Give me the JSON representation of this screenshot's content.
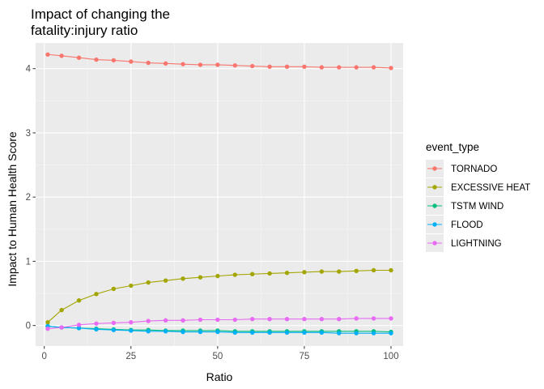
{
  "chart_data": {
    "type": "line",
    "title_line1": "Impact of changing the",
    "title_line2": "fatality:injury ratio",
    "xlabel": "Ratio",
    "ylabel": "Impact to Human Health Score",
    "xlim": [
      -2.5,
      103.5
    ],
    "ylim": [
      -0.32,
      4.4
    ],
    "x_ticks": [
      0,
      25,
      50,
      75,
      100
    ],
    "x_tick_labels": [
      "0",
      "25",
      "50",
      "75",
      "100"
    ],
    "y_ticks": [
      0,
      1,
      2,
      3,
      4
    ],
    "y_tick_labels": [
      "0",
      "1",
      "2",
      "3",
      "4"
    ],
    "grid": true,
    "legend_title": "event_type",
    "legend_position": "right",
    "x": [
      1,
      5,
      10,
      15,
      20,
      25,
      30,
      35,
      40,
      45,
      50,
      55,
      60,
      65,
      70,
      75,
      80,
      85,
      90,
      95,
      100
    ],
    "series": [
      {
        "name": "TORNADO",
        "color": "#F8766D",
        "values": [
          4.22,
          4.2,
          4.17,
          4.14,
          4.13,
          4.11,
          4.09,
          4.08,
          4.07,
          4.06,
          4.06,
          4.05,
          4.04,
          4.03,
          4.03,
          4.03,
          4.02,
          4.02,
          4.02,
          4.02,
          4.01
        ]
      },
      {
        "name": "EXCESSIVE HEAT",
        "color": "#A3A500",
        "values": [
          0.05,
          0.24,
          0.39,
          0.49,
          0.57,
          0.62,
          0.67,
          0.7,
          0.73,
          0.75,
          0.77,
          0.79,
          0.8,
          0.81,
          0.82,
          0.83,
          0.84,
          0.84,
          0.85,
          0.86,
          0.86
        ]
      },
      {
        "name": "TSTM WIND",
        "color": "#00BF7D",
        "values": [
          -0.01,
          -0.03,
          -0.04,
          -0.05,
          -0.06,
          -0.07,
          -0.07,
          -0.08,
          -0.08,
          -0.08,
          -0.08,
          -0.09,
          -0.09,
          -0.09,
          -0.09,
          -0.09,
          -0.09,
          -0.09,
          -0.09,
          -0.09,
          -0.1
        ]
      },
      {
        "name": "FLOOD",
        "color": "#00B0F6",
        "values": [
          -0.01,
          -0.03,
          -0.04,
          -0.06,
          -0.07,
          -0.08,
          -0.09,
          -0.09,
          -0.1,
          -0.1,
          -0.1,
          -0.11,
          -0.11,
          -0.11,
          -0.11,
          -0.11,
          -0.11,
          -0.12,
          -0.12,
          -0.12,
          -0.12
        ]
      },
      {
        "name": "LIGHTNING",
        "color": "#E76BF3",
        "values": [
          -0.05,
          -0.03,
          0.01,
          0.03,
          0.04,
          0.05,
          0.07,
          0.08,
          0.08,
          0.09,
          0.09,
          0.09,
          0.1,
          0.1,
          0.1,
          0.1,
          0.1,
          0.1,
          0.11,
          0.11,
          0.11
        ]
      }
    ]
  },
  "colors": {
    "panel_background": "#EBEBEB",
    "major_grid": "#FFFFFF",
    "minor_grid": "#F5F5F5",
    "tick_text": "#4D4D4D",
    "tick_mark": "#333333"
  }
}
